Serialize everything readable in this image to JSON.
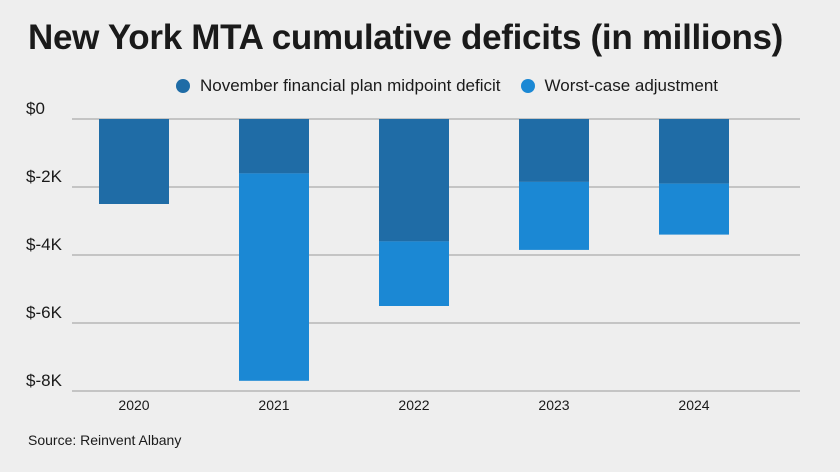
{
  "chart_data": {
    "type": "bar",
    "stacked": true,
    "title": "New York MTA cumulative deficits (in millions)",
    "categories": [
      "2020",
      "2021",
      "2022",
      "2023",
      "2024"
    ],
    "series": [
      {
        "name": "November financial plan midpoint deficit",
        "color": "#1f6ca6",
        "values": [
          -2500,
          -1600,
          -3600,
          -1850,
          -1900
        ]
      },
      {
        "name": "Worst-case adjustment",
        "color": "#1b88d4",
        "values": [
          0,
          -6100,
          -1900,
          -2000,
          -1500
        ]
      }
    ],
    "ylim": [
      -8000,
      0
    ],
    "yticks": [
      0,
      -2000,
      -4000,
      -6000,
      -8000
    ],
    "ytick_labels": [
      "$0",
      "$-2K",
      "$-4K",
      "$-6K",
      "$-8K"
    ],
    "grid": true,
    "legend_position": "top",
    "source": "Source: Reinvent Albany"
  }
}
